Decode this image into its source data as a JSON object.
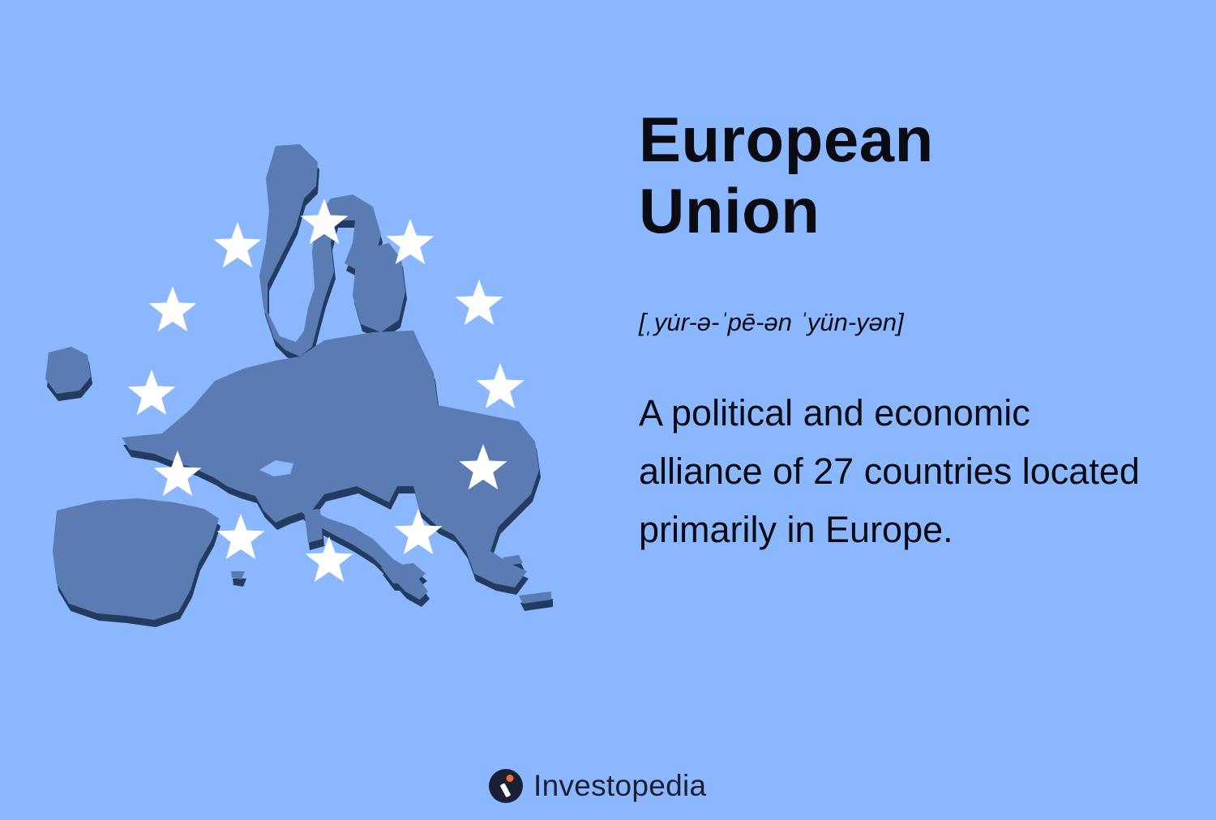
{
  "title": {
    "line1": "European",
    "line2": "Union"
  },
  "pronunciation": "[ˌyu̇r-ə-ˈpē-ən ˈyün-yən]",
  "definition": "A political and economic alliance of 27 countries located primarily in Europe.",
  "brand": {
    "name": "Investopedia",
    "icon": "investopedia-logo-icon",
    "colors": {
      "dark": "#1b1f33",
      "accent": "#ef6c2c"
    }
  },
  "illustration": {
    "icon": "europe-map-icon",
    "stars_icon": "star-icon",
    "star_count": 12,
    "map_color": "#5b7cb4",
    "star_color": "#ffffff"
  },
  "colors": {
    "background": "#8ab7fd",
    "text": "#0b0b14"
  }
}
